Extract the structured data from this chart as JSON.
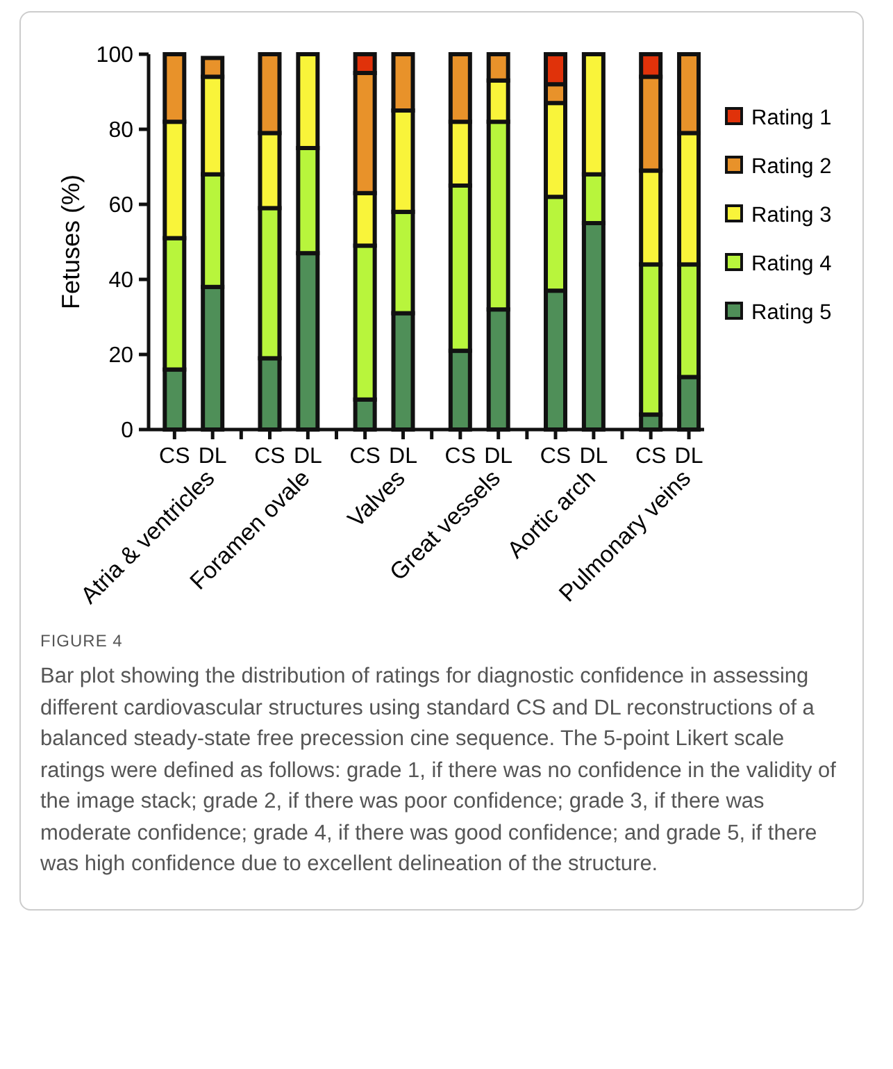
{
  "chart_data": {
    "type": "bar",
    "stacked": true,
    "ylabel": "Fetuses (%)",
    "categories": [
      "CS",
      "DL",
      "CS",
      "DL",
      "CS",
      "DL",
      "CS",
      "DL",
      "CS",
      "DL",
      "CS",
      "DL"
    ],
    "ylim": [
      0,
      100
    ],
    "yticks": [
      0,
      20,
      40,
      60,
      80,
      100
    ],
    "legend": "right",
    "grid": false,
    "series": [
      {
        "name": "Rating 5",
        "color": "#4f8f58",
        "values": [
          16,
          38,
          19,
          47,
          8,
          31,
          21,
          32,
          37,
          55,
          4,
          14
        ]
      },
      {
        "name": "Rating 4",
        "color": "#b8f53c",
        "values": [
          35,
          30,
          40,
          28,
          41,
          27,
          44,
          50,
          25,
          13,
          40,
          30
        ]
      },
      {
        "name": "Rating 3",
        "color": "#f9f43a",
        "values": [
          31,
          26,
          20,
          25,
          14,
          27,
          17,
          11,
          25,
          32,
          25,
          35
        ]
      },
      {
        "name": "Rating 2",
        "color": "#e8922a",
        "values": [
          18,
          5,
          21,
          0,
          32,
          15,
          18,
          7,
          5,
          0,
          25,
          21
        ]
      },
      {
        "name": "Rating 1",
        "color": "#e0320a",
        "values": [
          0,
          0,
          0,
          0,
          5,
          0,
          0,
          0,
          8,
          0,
          6,
          0
        ]
      }
    ],
    "annotations": [
      "Atria & ventricles",
      "Foramen ovale",
      "Valves",
      "Great vessels",
      "Aortic arch",
      "Pulmonary veins",
      "FIGURE 4",
      "Bar plot showing the distribution of ratings for diagnostic confidence in assessing different cardiovascular structures using standard CS and DL reconstructions of a balanced steady-state free precession cine sequence. The 5-point Likert scale ratings were defined as follows: grade 1, if there was no confidence in the validity of the image stack; grade 2, if there was poor confidence; grade 3, if there was moderate confidence; grade 4, if there was good confidence; and grade 5, if there was high confidence due to excellent delineation of the structure."
    ]
  }
}
